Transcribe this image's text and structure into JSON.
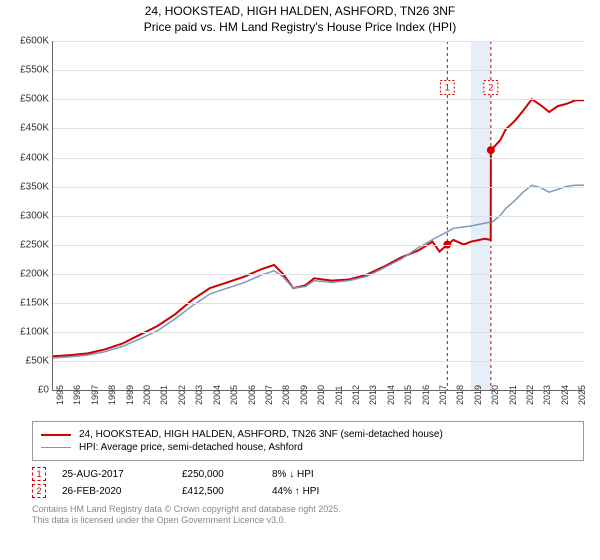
{
  "title_line1": "24, HOOKSTEAD, HIGH HALDEN, ASHFORD, TN26 3NF",
  "title_line2": "Price paid vs. HM Land Registry's House Price Index (HPI)",
  "chart": {
    "type": "line",
    "background_color": "#ffffff",
    "grid_color": "#e0e0e0",
    "axis_color": "#666666",
    "label_fontsize": 10,
    "title_fontsize": 12,
    "xlim": [
      1995,
      2025.5
    ],
    "ylim": [
      0,
      600000
    ],
    "ytick_step": 50000,
    "yticks": [
      "£0",
      "£50K",
      "£100K",
      "£150K",
      "£200K",
      "£250K",
      "£300K",
      "£350K",
      "£400K",
      "£450K",
      "£500K",
      "£550K",
      "£600K"
    ],
    "xticks": [
      "1995",
      "1996",
      "1997",
      "1998",
      "1999",
      "2000",
      "2001",
      "2002",
      "2003",
      "2004",
      "2005",
      "2006",
      "2007",
      "2008",
      "2009",
      "2010",
      "2011",
      "2012",
      "2013",
      "2014",
      "2015",
      "2016",
      "2017",
      "2018",
      "2019",
      "2020",
      "2021",
      "2022",
      "2023",
      "2024",
      "2025"
    ],
    "shade_band": {
      "x_start": 2019.0,
      "x_end": 2020.15,
      "color": "#d6e4f5"
    },
    "series": [
      {
        "name": "price_paid",
        "label": "24, HOOKSTEAD, HIGH HALDEN, ASHFORD, TN26 3NF (semi-detached house)",
        "color": "#d00000",
        "line_width": 2,
        "points": [
          [
            1995.0,
            58000
          ],
          [
            1996.0,
            60000
          ],
          [
            1997.0,
            63000
          ],
          [
            1998.0,
            70000
          ],
          [
            1999.0,
            80000
          ],
          [
            2000.0,
            95000
          ],
          [
            2001.0,
            110000
          ],
          [
            2002.0,
            130000
          ],
          [
            2003.0,
            155000
          ],
          [
            2004.0,
            175000
          ],
          [
            2005.0,
            185000
          ],
          [
            2006.0,
            195000
          ],
          [
            2007.0,
            208000
          ],
          [
            2007.7,
            215000
          ],
          [
            2008.2,
            200000
          ],
          [
            2008.8,
            175000
          ],
          [
            2009.5,
            180000
          ],
          [
            2010.0,
            192000
          ],
          [
            2011.0,
            188000
          ],
          [
            2012.0,
            190000
          ],
          [
            2013.0,
            198000
          ],
          [
            2014.0,
            212000
          ],
          [
            2015.0,
            228000
          ],
          [
            2016.0,
            240000
          ],
          [
            2016.8,
            255000
          ],
          [
            2017.2,
            238000
          ],
          [
            2017.65,
            250000
          ],
          [
            2018.0,
            258000
          ],
          [
            2018.6,
            250000
          ],
          [
            2019.0,
            255000
          ],
          [
            2019.8,
            260000
          ],
          [
            2020.14,
            258000
          ],
          [
            2020.15,
            412000
          ],
          [
            2020.7,
            430000
          ],
          [
            2021.0,
            448000
          ],
          [
            2021.5,
            462000
          ],
          [
            2022.0,
            480000
          ],
          [
            2022.5,
            500000
          ],
          [
            2023.0,
            490000
          ],
          [
            2023.5,
            478000
          ],
          [
            2024.0,
            488000
          ],
          [
            2024.5,
            492000
          ],
          [
            2025.0,
            498000
          ],
          [
            2025.5,
            498000
          ]
        ]
      },
      {
        "name": "hpi",
        "label": "HPI: Average price, semi-detached house, Ashford",
        "color": "#7a9ac0",
        "line_width": 1.5,
        "points": [
          [
            1995.0,
            55000
          ],
          [
            1996.0,
            57000
          ],
          [
            1997.0,
            60000
          ],
          [
            1998.0,
            66000
          ],
          [
            1999.0,
            75000
          ],
          [
            2000.0,
            88000
          ],
          [
            2001.0,
            102000
          ],
          [
            2002.0,
            122000
          ],
          [
            2003.0,
            145000
          ],
          [
            2004.0,
            165000
          ],
          [
            2005.0,
            175000
          ],
          [
            2006.0,
            185000
          ],
          [
            2007.0,
            198000
          ],
          [
            2007.7,
            205000
          ],
          [
            2008.2,
            195000
          ],
          [
            2008.8,
            175000
          ],
          [
            2009.5,
            178000
          ],
          [
            2010.0,
            188000
          ],
          [
            2011.0,
            185000
          ],
          [
            2012.0,
            188000
          ],
          [
            2013.0,
            195000
          ],
          [
            2014.0,
            210000
          ],
          [
            2015.0,
            225000
          ],
          [
            2016.0,
            245000
          ],
          [
            2017.0,
            262000
          ],
          [
            2017.65,
            272000
          ],
          [
            2018.0,
            278000
          ],
          [
            2019.0,
            282000
          ],
          [
            2020.0,
            288000
          ],
          [
            2020.15,
            287000
          ],
          [
            2020.7,
            300000
          ],
          [
            2021.0,
            312000
          ],
          [
            2021.5,
            325000
          ],
          [
            2022.0,
            340000
          ],
          [
            2022.5,
            352000
          ],
          [
            2023.0,
            348000
          ],
          [
            2023.5,
            340000
          ],
          [
            2024.0,
            345000
          ],
          [
            2024.5,
            350000
          ],
          [
            2025.0,
            352000
          ],
          [
            2025.5,
            352000
          ]
        ]
      }
    ],
    "transaction_markers": [
      {
        "n": "1",
        "x": 2017.65,
        "y": 250000,
        "label_y": 520000
      },
      {
        "n": "2",
        "x": 2020.15,
        "y": 412500,
        "label_y": 520000
      }
    ],
    "marker_color": "#d00000",
    "marker_box_bg": "#ffffff"
  },
  "legend": {
    "border_color": "#999999",
    "rows": [
      {
        "color": "#d00000",
        "line_width": 2,
        "label": "24, HOOKSTEAD, HIGH HALDEN, ASHFORD, TN26 3NF (semi-detached house)"
      },
      {
        "color": "#7a9ac0",
        "line_width": 1.5,
        "label": "HPI: Average price, semi-detached house, Ashford"
      }
    ]
  },
  "transactions": [
    {
      "n": "1",
      "date": "25-AUG-2017",
      "price": "£250,000",
      "delta": "8% ↓ HPI"
    },
    {
      "n": "2",
      "date": "26-FEB-2020",
      "price": "£412,500",
      "delta": "44% ↑ HPI"
    }
  ],
  "attribution_line1": "Contains HM Land Registry data © Crown copyright and database right 2025.",
  "attribution_line2": "This data is licensed under the Open Government Licence v3.0."
}
